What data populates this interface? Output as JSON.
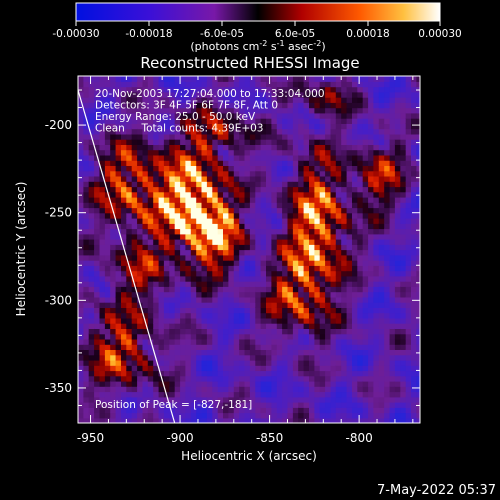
{
  "colorbar": {
    "tick_labels": [
      "-0.00030",
      "-0.00018",
      "-6.0e-05",
      "6.0e-05",
      "0.00018",
      "0.00030"
    ],
    "unit_label_prefix": "(photons cm",
    "unit_sup1": "-2",
    "unit_mid1": " s",
    "unit_sup2": "-1",
    "unit_mid2": " asec",
    "unit_sup3": "-2",
    "unit_suffix": ")",
    "range": [
      -0.0003,
      0.0003
    ]
  },
  "chart_data": {
    "type": "heatmap",
    "title": "Reconstructed RHESSI Image",
    "xlabel": "Heliocentric X (arcsec)",
    "ylabel": "Heliocentric Y (arcsec)",
    "xlim": [
      -957,
      -766
    ],
    "ylim": [
      -370,
      -172
    ],
    "x_ticks": [
      -950,
      -900,
      -850,
      -800
    ],
    "y_ticks": [
      -200,
      -250,
      -300,
      -350
    ],
    "x_tick_labels": [
      "-950",
      "-900",
      "-850",
      "-800"
    ],
    "y_tick_labels": [
      "-200",
      "-250",
      "-300",
      "-350"
    ],
    "info_lines": [
      "20-Nov-2003 17:27:04.000 to 17:33:04.000",
      "Detectors: 3F 4F 5F 6F 7F 8F, Att 0",
      "Energy Range: 25.0 - 50.0 keV",
      "Clean     Total counts: 4.39E+03"
    ],
    "peak_label": "Position of Peak = [-827,-181]",
    "peak": [
      -827,
      -181
    ],
    "limb_line": [
      [
        -957,
        -180
      ],
      [
        -903,
        -370
      ]
    ],
    "sources": [
      {
        "x": -895,
        "y": -245,
        "amp": 1.0,
        "sx": 14,
        "sy": 20
      },
      {
        "x": -882,
        "y": -265,
        "amp": 0.7,
        "sx": 10,
        "sy": 14
      },
      {
        "x": -825,
        "y": -260,
        "amp": 0.85,
        "sx": 12,
        "sy": 28
      },
      {
        "x": -838,
        "y": -300,
        "amp": 0.5,
        "sx": 12,
        "sy": 16
      },
      {
        "x": -930,
        "y": -235,
        "amp": 0.65,
        "sx": 14,
        "sy": 18
      },
      {
        "x": -935,
        "y": -330,
        "amp": 0.6,
        "sx": 16,
        "sy": 16
      },
      {
        "x": -925,
        "y": -285,
        "amp": 0.45,
        "sx": 12,
        "sy": 14
      },
      {
        "x": -880,
        "y": -205,
        "amp": 0.45,
        "sx": 14,
        "sy": 10
      },
      {
        "x": -790,
        "y": -230,
        "amp": 0.55,
        "sx": 10,
        "sy": 14
      },
      {
        "x": -820,
        "y": -185,
        "amp": 0.4,
        "sx": 10,
        "sy": 8
      }
    ]
  },
  "footer": {
    "timestamp": "7-May-2022 05:37"
  }
}
